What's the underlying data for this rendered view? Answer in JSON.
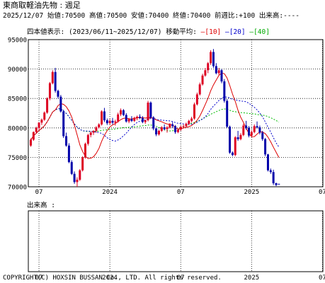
{
  "header": {
    "title": "東商取軽油先物 :  週足",
    "info": "2025/12/07 始値:70500 高値:70500 安値:70400 終値:70400 前週比:+100 出来高:----"
  },
  "legend": {
    "prefix": "四本値表示: (2023/06/11~2025/12/07) 移動平均:",
    "ma10": "[10]",
    "ma20": "[20]",
    "ma40": "[40]"
  },
  "volume_label": "出来高  :",
  "copyright": "COPYRIGHT(C) HOXSIN BUSSAN Co., LTD. All rights reserved.",
  "colors": {
    "up": "#dd0022",
    "down": "#0000aa",
    "ma10": "#dd0000",
    "ma20": "#0000cc",
    "ma40": "#00bb00"
  },
  "chart_data": {
    "type": "candlestick",
    "period": "weekly",
    "ylim": [
      70000,
      95000
    ],
    "yticks": [
      70000,
      75000,
      80000,
      85000,
      90000,
      95000
    ],
    "x_tick_labels": [
      "07",
      "2024",
      "07",
      "2025",
      "07"
    ],
    "x_tick_weeks": [
      3,
      29,
      55,
      81,
      107
    ],
    "candles": [
      [
        77000,
        78200,
        76800,
        78000
      ],
      [
        78000,
        79400,
        77800,
        79300
      ],
      [
        79300,
        80200,
        79000,
        80000
      ],
      [
        80000,
        81000,
        79600,
        80900
      ],
      [
        80900,
        81600,
        80500,
        81400
      ],
      [
        81400,
        82800,
        81200,
        82600
      ],
      [
        82600,
        85200,
        82400,
        85000
      ],
      [
        85000,
        87800,
        84700,
        87600
      ],
      [
        87600,
        89800,
        87400,
        89500
      ],
      [
        89500,
        90200,
        86000,
        86300
      ],
      [
        86300,
        86500,
        85000,
        85300
      ],
      [
        85300,
        85600,
        82600,
        82800
      ],
      [
        82800,
        83100,
        78300,
        78600
      ],
      [
        78600,
        79200,
        76800,
        77000
      ],
      [
        77000,
        77400,
        74000,
        74200
      ],
      [
        74200,
        74500,
        72000,
        72200
      ],
      [
        72200,
        72600,
        70500,
        70800
      ],
      [
        70800,
        71600,
        70000,
        71200
      ],
      [
        71200,
        73000,
        71000,
        72800
      ],
      [
        72800,
        75200,
        72600,
        75000
      ],
      [
        75000,
        77500,
        74800,
        77300
      ],
      [
        77300,
        79000,
        77000,
        78800
      ],
      [
        78800,
        79400,
        78400,
        79200
      ],
      [
        79200,
        79600,
        78800,
        79500
      ],
      [
        79500,
        80300,
        79200,
        80100
      ],
      [
        80100,
        80800,
        79900,
        80600
      ],
      [
        80600,
        83000,
        80400,
        82800
      ],
      [
        82800,
        83400,
        81000,
        81300
      ],
      [
        81300,
        81600,
        80500,
        80800
      ],
      [
        80800,
        81500,
        80600,
        81200
      ],
      [
        81200,
        81700,
        80600,
        80900
      ],
      [
        80900,
        81400,
        80400,
        81100
      ],
      [
        81100,
        82600,
        80900,
        82300
      ],
      [
        82300,
        83300,
        82000,
        83000
      ],
      [
        83000,
        83200,
        82000,
        82200
      ],
      [
        82200,
        82500,
        80900,
        81100
      ],
      [
        81100,
        81700,
        80800,
        81500
      ],
      [
        81500,
        82000,
        81000,
        81200
      ],
      [
        81200,
        81900,
        81000,
        81700
      ],
      [
        81700,
        82100,
        81300,
        81900
      ],
      [
        81900,
        82300,
        81500,
        81700
      ],
      [
        81700,
        82000,
        80800,
        81000
      ],
      [
        81000,
        81400,
        80700,
        81300
      ],
      [
        81300,
        84600,
        81100,
        84300
      ],
      [
        84300,
        84500,
        81500,
        81800
      ],
      [
        81800,
        82000,
        79600,
        79900
      ],
      [
        79900,
        80100,
        78600,
        78900
      ],
      [
        78900,
        79700,
        78700,
        79500
      ],
      [
        79500,
        80300,
        79300,
        80100
      ],
      [
        80100,
        80600,
        79600,
        79800
      ],
      [
        79800,
        80300,
        79200,
        80100
      ],
      [
        80100,
        80800,
        79900,
        80600
      ],
      [
        80600,
        81000,
        80000,
        80300
      ],
      [
        80300,
        80500,
        79000,
        79300
      ],
      [
        79300,
        79900,
        79100,
        79700
      ],
      [
        79700,
        80400,
        79500,
        80200
      ],
      [
        80200,
        80600,
        79900,
        80300
      ],
      [
        80300,
        80900,
        80100,
        80700
      ],
      [
        80700,
        81400,
        80500,
        81200
      ],
      [
        81200,
        81900,
        80900,
        81600
      ],
      [
        81600,
        84300,
        81400,
        84000
      ],
      [
        84000,
        86000,
        83800,
        85700
      ],
      [
        85700,
        87700,
        85500,
        87400
      ],
      [
        87400,
        89200,
        87200,
        88900
      ],
      [
        88900,
        90200,
        88700,
        89800
      ],
      [
        89800,
        91200,
        89300,
        91000
      ],
      [
        91000,
        93200,
        90700,
        92900
      ],
      [
        92900,
        93400,
        90200,
        90500
      ],
      [
        90500,
        91000,
        89100,
        89300
      ],
      [
        89300,
        90200,
        89000,
        89800
      ],
      [
        89800,
        90000,
        87600,
        87900
      ],
      [
        87900,
        88300,
        84300,
        84600
      ],
      [
        84600,
        84900,
        80000,
        80200
      ],
      [
        80200,
        80400,
        75600,
        75800
      ],
      [
        75800,
        76000,
        75200,
        75400
      ],
      [
        75400,
        78600,
        75200,
        78400
      ],
      [
        78400,
        79500,
        77800,
        78100
      ],
      [
        78100,
        79100,
        77900,
        78800
      ],
      [
        78800,
        80700,
        78600,
        80400
      ],
      [
        80400,
        81200,
        79700,
        80000
      ],
      [
        80000,
        80300,
        78400,
        78700
      ],
      [
        78700,
        79600,
        78500,
        79300
      ],
      [
        79300,
        80600,
        79100,
        80300
      ],
      [
        80300,
        81100,
        79900,
        80100
      ],
      [
        80100,
        80400,
        78900,
        79200
      ],
      [
        79200,
        79500,
        77800,
        78100
      ],
      [
        78100,
        78300,
        75200,
        75500
      ],
      [
        75500,
        75600,
        72600,
        72800
      ],
      [
        72800,
        73100,
        72200,
        72500
      ],
      [
        72500,
        72900,
        70300,
        70600
      ],
      [
        70600,
        70700,
        70100,
        70300
      ],
      [
        70500,
        70500,
        70400,
        70400
      ]
    ]
  }
}
